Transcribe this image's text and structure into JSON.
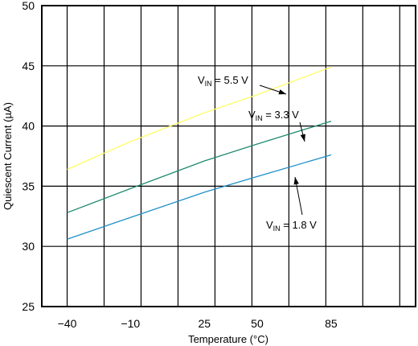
{
  "chart_data": {
    "type": "line",
    "title": "",
    "xlabel": "Temperature (°C)",
    "ylabel": "Quiescent Current (µA)",
    "x_tick_labels": [
      "−40",
      "−10",
      "25",
      "50",
      "85"
    ],
    "x_ticks": [
      -40,
      -10,
      25,
      50,
      85
    ],
    "xlim": [
      -52,
      125
    ],
    "ylim": [
      25,
      50
    ],
    "y_ticks": [
      25,
      30,
      35,
      40,
      45,
      50
    ],
    "y_tick_labels": [
      "25",
      "30",
      "35",
      "40",
      "45",
      "50"
    ],
    "grid": true,
    "series": [
      {
        "name": "VIN = 5.5 V",
        "color": "#ffff66",
        "x": [
          -40,
          -10,
          25,
          50,
          85
        ],
        "y": [
          36.4,
          38.7,
          41.1,
          42.6,
          44.9
        ]
      },
      {
        "name": "VIN = 3.3 V",
        "color": "#1f8a70",
        "x": [
          -40,
          -10,
          25,
          50,
          85
        ],
        "y": [
          32.8,
          34.8,
          37.1,
          38.5,
          40.4
        ]
      },
      {
        "name": "VIN = 1.8 V",
        "color": "#1e8fc8",
        "x": [
          -40,
          -10,
          25,
          50,
          85
        ],
        "y": [
          30.6,
          32.4,
          34.5,
          35.8,
          37.6
        ]
      }
    ],
    "annotations": [
      {
        "main": "V",
        "sub": "IN",
        "rest": " = 5.5  V"
      },
      {
        "main": "V",
        "sub": "IN",
        "rest": " = 3.3 V"
      },
      {
        "main": "V",
        "sub": "IN",
        "rest": " = 1.8 V"
      }
    ]
  }
}
